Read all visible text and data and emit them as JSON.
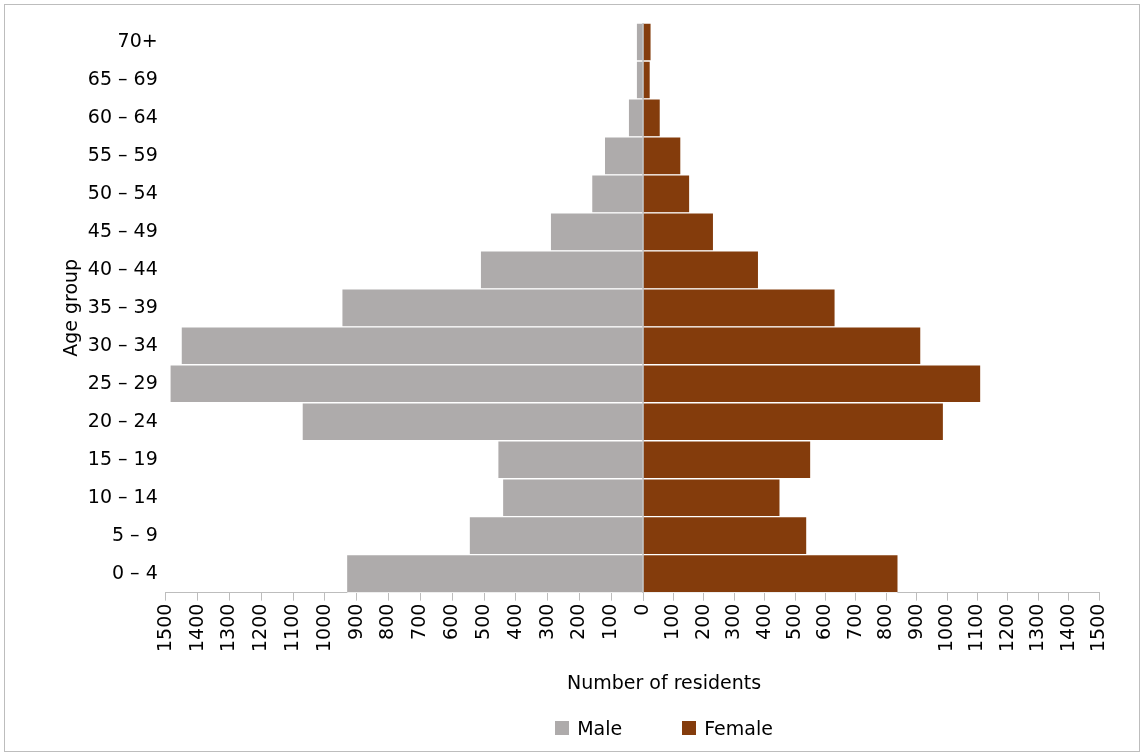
{
  "chart_data": [
    {
      "type": "bar",
      "orientation": "horizontal",
      "ylabel": "Age group",
      "xlabel": "Number of residents",
      "categories": [
        "70+",
        "65 – 69",
        "60 – 64",
        "55 – 59",
        "50 – 54",
        "45 – 49",
        "40 – 44",
        "35 – 39",
        "30 – 34",
        "25 – 29",
        "20 – 24",
        "15 – 19",
        "10 – 14",
        "5 – 9",
        "0 – 4"
      ],
      "series": [
        {
          "name": "Male",
          "color": "#aeabab",
          "values": [
            20,
            20,
            45,
            120,
            160,
            290,
            510,
            945,
            1450,
            1485,
            1070,
            455,
            440,
            545,
            930
          ]
        }
      ],
      "xlim": [
        1500,
        0
      ],
      "xticks": [
        1500,
        1400,
        1300,
        1200,
        1100,
        1000,
        900,
        800,
        700,
        600,
        500,
        400,
        300,
        200,
        100,
        0
      ],
      "grid": false,
      "legend": "bottom"
    },
    {
      "type": "bar",
      "orientation": "horizontal",
      "categories": [
        null,
        null,
        null,
        null,
        null,
        null,
        null,
        null,
        null,
        null,
        null,
        null,
        null,
        null,
        null
      ],
      "series": [
        {
          "name": "Female",
          "color": "#843c0c",
          "values": [
            25,
            22,
            55,
            123,
            152,
            230,
            378,
            630,
            912,
            1109,
            986,
            550,
            449,
            537,
            837
          ]
        }
      ],
      "xlim": [
        0,
        1500
      ],
      "xticks": [
        {
          "value": 0,
          "label": null
        },
        100,
        200,
        300,
        400,
        500,
        600,
        700,
        800,
        900,
        1000,
        1100,
        1200,
        1300,
        1400,
        1500
      ],
      "grid": false,
      "legend": "bottom"
    }
  ]
}
